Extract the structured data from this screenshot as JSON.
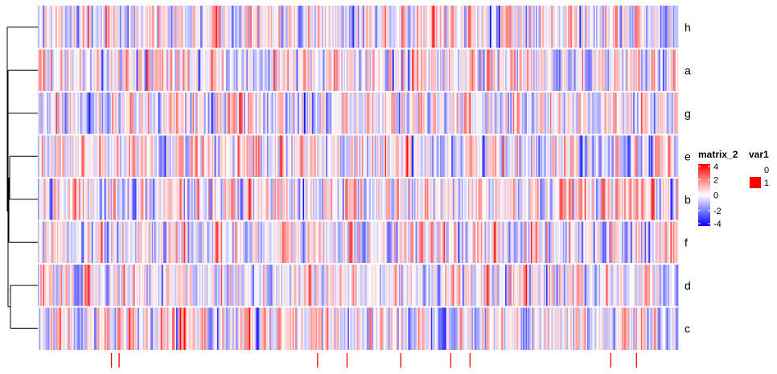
{
  "chart_data": {
    "type": "heatmap",
    "title": "",
    "rows": [
      "h",
      "a",
      "g",
      "e",
      "b",
      "f",
      "d",
      "c"
    ],
    "n_columns": 500,
    "value_range": [
      -4,
      4
    ],
    "color_scale": {
      "low": "#0000ff",
      "mid": "#ffffff",
      "high": "#ff0000"
    },
    "legend_matrix": {
      "title": "matrix_2",
      "ticks": [
        "4",
        "2",
        "0",
        "-2",
        "-4"
      ],
      "tick_values": [
        4,
        2,
        0,
        -2,
        -4
      ]
    },
    "legend_annotation": {
      "title": "var1",
      "levels": [
        "0",
        "1"
      ],
      "colors": [
        "#ffffff",
        "#ff0000"
      ]
    },
    "annotation_var1_columns": [
      57,
      63,
      218,
      241,
      283,
      322,
      337,
      447,
      467
    ],
    "row_dendrogram": "present on left"
  }
}
